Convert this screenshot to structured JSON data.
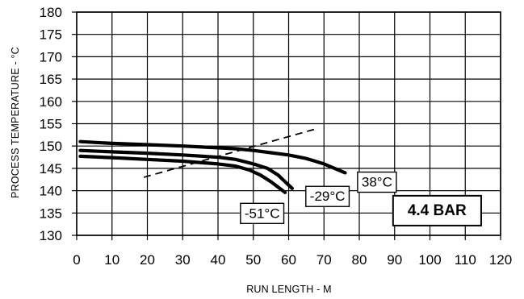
{
  "chart_data": {
    "type": "line",
    "xlabel": "RUN LENGTH - M",
    "ylabel": "PROCESS TEMPERATURE - °C",
    "xlim": [
      0,
      120
    ],
    "ylim": [
      130,
      180
    ],
    "x_ticks": [
      0,
      10,
      20,
      30,
      40,
      50,
      60,
      70,
      80,
      90,
      100,
      110,
      120
    ],
    "y_ticks": [
      130,
      135,
      140,
      145,
      150,
      155,
      160,
      165,
      170,
      175,
      180
    ],
    "grid": true,
    "series": [
      {
        "name": "38°C",
        "style": "solid",
        "points": [
          [
            1,
            151
          ],
          [
            10,
            150.6
          ],
          [
            20,
            150.3
          ],
          [
            30,
            150
          ],
          [
            40,
            149.6
          ],
          [
            45,
            149.4
          ],
          [
            50,
            149
          ],
          [
            55,
            148.5
          ],
          [
            60,
            148
          ],
          [
            65,
            147.2
          ],
          [
            70,
            146
          ],
          [
            73,
            145
          ],
          [
            76,
            144
          ]
        ]
      },
      {
        "name": "-29°C",
        "style": "solid",
        "points": [
          [
            1,
            149
          ],
          [
            10,
            148.7
          ],
          [
            20,
            148.4
          ],
          [
            30,
            148
          ],
          [
            40,
            147.5
          ],
          [
            45,
            147
          ],
          [
            50,
            146
          ],
          [
            54,
            145
          ],
          [
            57,
            143.5
          ],
          [
            59,
            142
          ],
          [
            61,
            140.5
          ]
        ]
      },
      {
        "name": "-51°C",
        "style": "solid",
        "points": [
          [
            1,
            147.7
          ],
          [
            10,
            147.4
          ],
          [
            20,
            147
          ],
          [
            30,
            146.6
          ],
          [
            40,
            146
          ],
          [
            45,
            145.5
          ],
          [
            49,
            144.6
          ],
          [
            52,
            143.5
          ],
          [
            55,
            142
          ],
          [
            57,
            140.8
          ],
          [
            59,
            139.6
          ]
        ]
      },
      {
        "style": "dashed",
        "points": [
          [
            19,
            143
          ],
          [
            68,
            153.9
          ]
        ]
      }
    ],
    "annotations": [
      {
        "text": "38°C",
        "x": 85,
        "y": 142
      },
      {
        "text": "-29°C",
        "x": 71,
        "y": 138.8
      },
      {
        "text": "-51°C",
        "x": 52.5,
        "y": 135
      },
      {
        "text": "4.4 BAR",
        "x": 102,
        "y": 135.8
      }
    ],
    "colors": {
      "line": "#000000",
      "grid": "#000000",
      "background": "#ffffff"
    }
  }
}
